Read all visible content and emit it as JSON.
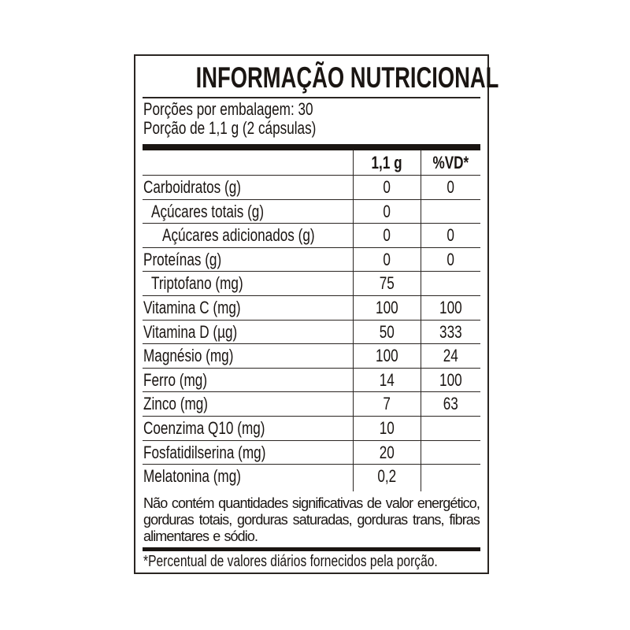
{
  "title": "INFORMAÇÃO NUTRICIONAL",
  "servings_per_package": "Porções por embalagem: 30",
  "serving_size": "Porção de 1,1 g (2 cápsulas)",
  "columns": [
    "",
    "1,1 g",
    "%VD*"
  ],
  "rows": [
    {
      "name": "Carboidratos (g)",
      "indent": 0,
      "amount": "0",
      "dv": "0"
    },
    {
      "name": "Açúcares totais (g)",
      "indent": 1,
      "amount": "0",
      "dv": ""
    },
    {
      "name": "Açúcares adicionados (g)",
      "indent": 2,
      "amount": "0",
      "dv": "0"
    },
    {
      "name": "Proteínas (g)",
      "indent": 0,
      "amount": "0",
      "dv": "0"
    },
    {
      "name": "Triptofano (mg)",
      "indent": 1,
      "amount": "75",
      "dv": ""
    },
    {
      "name": "Vitamina C (mg)",
      "indent": 0,
      "amount": "100",
      "dv": "100"
    },
    {
      "name": "Vitamina D (µg)",
      "indent": 0,
      "amount": "50",
      "dv": "333"
    },
    {
      "name": "Magnésio (mg)",
      "indent": 0,
      "amount": "100",
      "dv": "24"
    },
    {
      "name": "Ferro (mg)",
      "indent": 0,
      "amount": "14",
      "dv": "100"
    },
    {
      "name": "Zinco (mg)",
      "indent": 0,
      "amount": "7",
      "dv": "63"
    },
    {
      "name": "Coenzima Q10 (mg)",
      "indent": 0,
      "amount": "10",
      "dv": ""
    },
    {
      "name": "Fosfatidilserina (mg)",
      "indent": 0,
      "amount": "20",
      "dv": ""
    },
    {
      "name": "Melatonina (mg)",
      "indent": 0,
      "amount": "0,2",
      "dv": ""
    }
  ],
  "note": "Não contém quantidades significativas de valor energético, gorduras totais, gorduras saturadas, gorduras trans, fibras alimentares e sódio.",
  "footnote": "*Percentual de valores diários fornecidos pela porção."
}
